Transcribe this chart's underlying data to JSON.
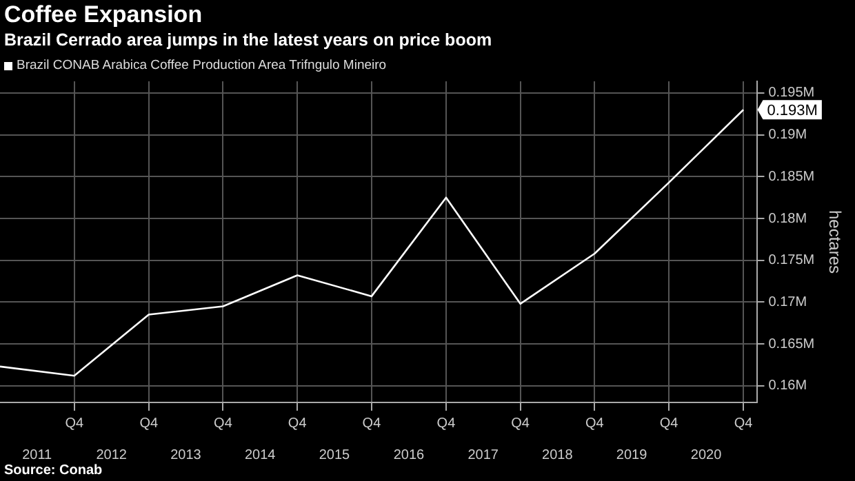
{
  "chart_data": {
    "type": "line",
    "title": "Coffee Expansion",
    "subtitle": "Brazil Cerrado area jumps in the latest years on price boom",
    "ylabel": "hectares",
    "annotations": [
      "Source: Conab"
    ],
    "legend": "top left",
    "grid": true,
    "marker": "none",
    "line_style": "solid",
    "x": [
      "2010-12-31",
      "2011-12-31",
      "2012-12-31",
      "2013-12-31",
      "2014-12-31",
      "2015-12-31",
      "2016-12-31",
      "2017-12-31",
      "2018-12-31",
      "2019-12-31",
      "2020-12-31"
    ],
    "series": [
      {
        "name": "Brazil CONAB Arabica Coffee Production Area Trifngulo Mineiro",
        "color": "#ffffff",
        "values": [
          0.1623,
          0.1612,
          0.1685,
          0.1695,
          0.1732,
          0.1707,
          0.1825,
          0.1698,
          0.1758,
          0.1843,
          0.193
        ],
        "value_labels": [
          null,
          null,
          null,
          null,
          null,
          null,
          null,
          null,
          null,
          null,
          "0.193M"
        ]
      }
    ],
    "xlim": [
      "2010-12-31",
      "2021-03-10"
    ],
    "xticks": [
      {
        "value": "2011-12-31",
        "label": "Q4"
      },
      {
        "value": "2012-12-31",
        "label": "Q4"
      },
      {
        "value": "2013-12-31",
        "label": "Q4"
      },
      {
        "value": "2014-12-31",
        "label": "Q4"
      },
      {
        "value": "2015-12-31",
        "label": "Q4"
      },
      {
        "value": "2016-12-31",
        "label": "Q4"
      },
      {
        "value": "2017-12-31",
        "label": "Q4"
      },
      {
        "value": "2018-12-31",
        "label": "Q4"
      },
      {
        "value": "2019-12-31",
        "label": "Q4"
      },
      {
        "value": "2020-12-31",
        "label": "Q4"
      }
    ],
    "x2lim": [
      "2010-12-31",
      "2021-03-10"
    ],
    "x2ticks": [
      {
        "value": "2011-07-01",
        "label": "2011"
      },
      {
        "value": "2012-07-01",
        "label": "2012"
      },
      {
        "value": "2013-07-01",
        "label": "2013"
      },
      {
        "value": "2014-07-01",
        "label": "2014"
      },
      {
        "value": "2015-07-01",
        "label": "2015"
      },
      {
        "value": "2016-07-01",
        "label": "2016"
      },
      {
        "value": "2017-07-01",
        "label": "2017"
      },
      {
        "value": "2018-07-01",
        "label": "2018"
      },
      {
        "value": "2019-07-01",
        "label": "2019"
      },
      {
        "value": "2020-07-01",
        "label": "2020"
      }
    ],
    "ylim": [
      0.158,
      0.1964
    ],
    "yticks": [
      {
        "value": 0.16,
        "label": "0.16M"
      },
      {
        "value": 0.165,
        "label": "0.165M"
      },
      {
        "value": 0.17,
        "label": "0.17M"
      },
      {
        "value": 0.175,
        "label": "0.175M"
      },
      {
        "value": 0.18,
        "label": "0.18M"
      },
      {
        "value": 0.185,
        "label": "0.185M"
      },
      {
        "value": 0.19,
        "label": "0.19M"
      },
      {
        "value": 0.195,
        "label": "0.195M"
      }
    ]
  }
}
